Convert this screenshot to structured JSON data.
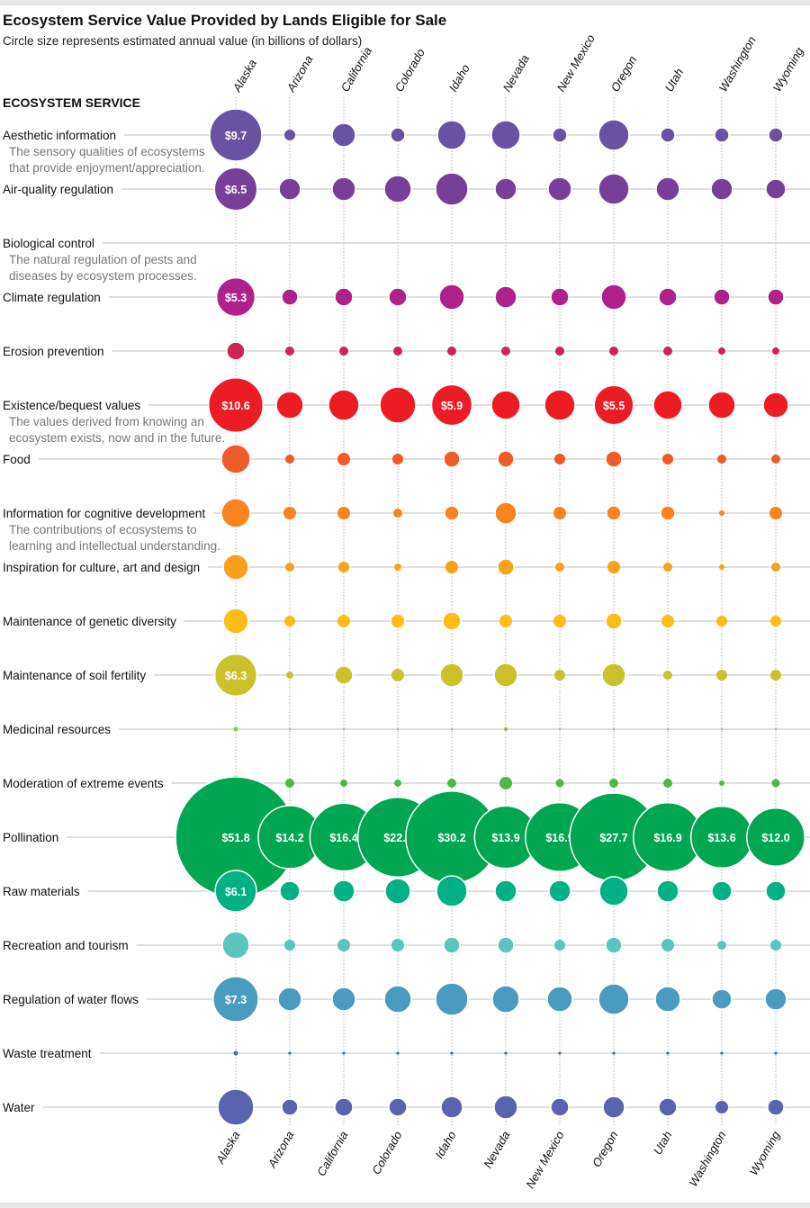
{
  "title": "Ecosystem Service Value Provided by Lands Eligible for Sale",
  "subtitle": "Circle size represents estimated annual value (in billions of dollars)",
  "chart_data": {
    "type": "bubble-matrix",
    "title": "Ecosystem Service Value Provided by Lands Eligible for Sale",
    "subtitle": "Circle size represents estimated annual value (in billions of dollars)",
    "row_header": "ECOSYSTEM SERVICE",
    "unit": "billions of dollars per year",
    "columns": [
      "Alaska",
      "Arizona",
      "California",
      "Colorado",
      "Idaho",
      "Nevada",
      "New Mexico",
      "Oregon",
      "Utah",
      "Washington",
      "Wyoming"
    ],
    "rows": [
      {
        "name": "Aesthetic information",
        "description": [
          "The sensory qualities of ecosystems",
          "that provide enjoyment/appreciation."
        ],
        "color": "#6a52a3",
        "values": [
          9.7,
          0.42,
          1.95,
          0.74,
          2.96,
          2.96,
          0.74,
          3.34,
          0.74,
          0.74,
          0.74
        ]
      },
      {
        "name": "Air-quality regulation",
        "color": "#773f97",
        "values": [
          6.5,
          1.66,
          1.95,
          2.6,
          3.75,
          1.66,
          1.95,
          3.34,
          1.95,
          1.66,
          1.4
        ]
      },
      {
        "name": "Biological control",
        "description": [
          "The natural regulation of pests and",
          "diseases by ecosystem processes."
        ],
        "color": "#8a3a94",
        "values": [
          0,
          0,
          0,
          0,
          0,
          0,
          0,
          0,
          0,
          0,
          0
        ]
      },
      {
        "name": "Climate regulation",
        "color": "#af228c",
        "values": [
          5.3,
          0.94,
          1.16,
          1.16,
          2.27,
          1.66,
          1.16,
          2.27,
          1.16,
          0.94,
          0.94
        ]
      },
      {
        "name": "Erosion prevention",
        "color": "#cc2457",
        "values": [
          1.16,
          0.29,
          0.29,
          0.29,
          0.29,
          0.29,
          0.29,
          0.29,
          0.29,
          0.18,
          0.18
        ]
      },
      {
        "name": "Existence/bequest values",
        "description": [
          "The values derived from knowing an",
          "ecosystem exists, now and in the future."
        ],
        "color": "#ec1c24",
        "values": [
          10.6,
          2.6,
          3.34,
          4.6,
          5.9,
          2.96,
          3.34,
          5.5,
          2.96,
          2.6,
          2.27
        ]
      },
      {
        "name": "Food",
        "color": "#f15a29",
        "values": [
          2.96,
          0.29,
          0.57,
          0.42,
          0.94,
          0.94,
          0.42,
          0.94,
          0.42,
          0.29,
          0.29
        ]
      },
      {
        "name": "Information for cognitive development",
        "description": [
          "The contributions of ecosystems to",
          "learning and intellectual understanding."
        ],
        "color": "#f7841f",
        "values": [
          2.96,
          0.57,
          0.57,
          0.29,
          0.74,
          1.66,
          0.57,
          0.74,
          0.74,
          0.1,
          0.57
        ]
      },
      {
        "name": "Inspiration for culture, art and design",
        "color": "#f9a11b",
        "values": [
          2.27,
          0.29,
          0.42,
          0.18,
          0.57,
          0.94,
          0.29,
          0.57,
          0.29,
          0.1,
          0.29
        ]
      },
      {
        "name": "Maintenance of genetic diversity",
        "color": "#fdbd16",
        "values": [
          2.27,
          0.42,
          0.57,
          0.74,
          1.16,
          0.57,
          0.57,
          0.94,
          0.57,
          0.42,
          0.42
        ]
      },
      {
        "name": "Maintenance of soil fertility",
        "color": "#cbc12b",
        "values": [
          6.3,
          0.18,
          1.16,
          0.57,
          1.95,
          1.95,
          0.42,
          1.95,
          0.29,
          0.42,
          0.42
        ]
      },
      {
        "name": "Medicinal resources",
        "color": "#8dc63f",
        "values": [
          0.07,
          0.01,
          0.01,
          0.01,
          0.01,
          0.05,
          0.01,
          0.01,
          0.01,
          0.01,
          0.01
        ]
      },
      {
        "name": "Moderation of extreme events",
        "color": "#4db848",
        "values": [
          0.94,
          0.29,
          0.18,
          0.18,
          0.29,
          0.57,
          0.23,
          0.29,
          0.29,
          0.1,
          0.23
        ]
      },
      {
        "name": "Pollination",
        "color": "#00a651",
        "values": [
          51.8,
          14.2,
          16.4,
          22.7,
          30.2,
          13.9,
          16.9,
          27.7,
          16.9,
          13.6,
          12.0
        ]
      },
      {
        "name": "Raw materials",
        "color": "#00b183",
        "values": [
          6.1,
          1.4,
          1.66,
          2.27,
          3.34,
          1.66,
          1.66,
          2.96,
          1.66,
          1.4,
          1.4
        ]
      },
      {
        "name": "Recreation and tourism",
        "color": "#5bc5bd",
        "values": [
          2.6,
          0.42,
          0.57,
          0.57,
          0.94,
          0.94,
          0.42,
          0.94,
          0.57,
          0.29,
          0.42
        ]
      },
      {
        "name": "Regulation of water flows",
        "color": "#4a9bc0",
        "values": [
          7.3,
          1.95,
          1.95,
          2.6,
          3.75,
          2.6,
          2.27,
          3.34,
          2.27,
          1.4,
          1.66
        ]
      },
      {
        "name": "Waste treatment",
        "color": "#3f70b0",
        "values": [
          0.07,
          0.03,
          0.03,
          0.03,
          0.03,
          0.03,
          0.03,
          0.03,
          0.03,
          0.03,
          0.03
        ]
      },
      {
        "name": "Water",
        "color": "#5a63ad",
        "values": [
          4.6,
          0.94,
          1.16,
          1.16,
          1.66,
          1.95,
          1.16,
          1.66,
          1.16,
          0.57,
          0.94
        ]
      }
    ]
  }
}
